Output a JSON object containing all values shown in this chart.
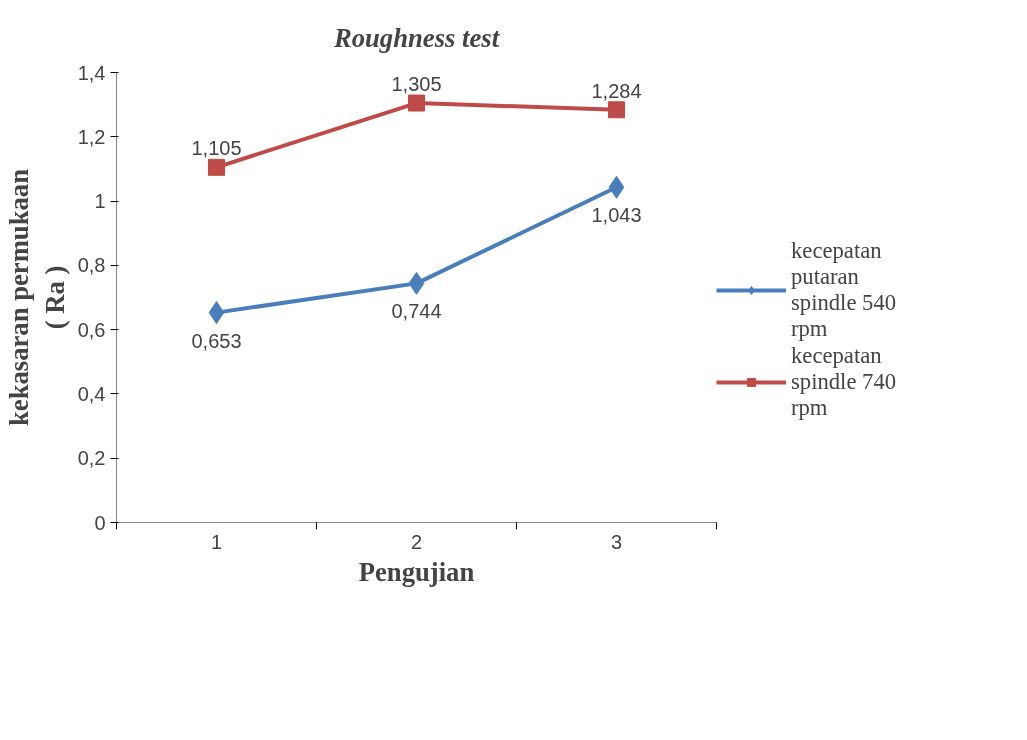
{
  "chart_data": {
    "type": "line",
    "title": "Roughness test",
    "xlabel": "Pengujian",
    "ylabel": "kekasaran permukaan ( Ra )",
    "categories": [
      "1",
      "2",
      "3"
    ],
    "series": [
      {
        "name": "kecepatan putaran spindle 540 rpm",
        "color": "#4a7ebb",
        "marker": "diamond",
        "values": [
          0.653,
          0.744,
          1.043
        ],
        "value_labels": [
          "0,653",
          "0,744",
          "1,043"
        ]
      },
      {
        "name": "kecepatan spindle 740 rpm",
        "color": "#be4b48",
        "marker": "square",
        "values": [
          1.105,
          1.305,
          1.284
        ],
        "value_labels": [
          "1,105",
          "1,305",
          "1,284"
        ]
      }
    ],
    "ylim": [
      0,
      1.4
    ],
    "yticks": [
      0,
      {
        "value": 0.2,
        "label": "0,2"
      },
      {
        "value": 0.4,
        "label": "0,4"
      },
      {
        "value": 0.6,
        "label": "0,6"
      },
      {
        "value": 0.8,
        "label": "0,8"
      },
      1,
      {
        "value": 1.2,
        "label": "1,2"
      },
      {
        "value": 1.4,
        "label": "1,4"
      }
    ],
    "grid": false,
    "legend": "right",
    "line_style": "solid"
  }
}
